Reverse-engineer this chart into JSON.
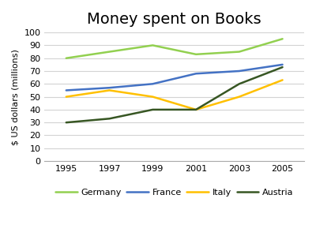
{
  "title": "Money spent on Books",
  "ylabel": "$ US dollars (millions)",
  "years": [
    1995,
    1997,
    1999,
    2001,
    2003,
    2005
  ],
  "series": {
    "Germany": [
      80,
      85,
      90,
      83,
      85,
      95
    ],
    "France": [
      55,
      57,
      60,
      68,
      70,
      75
    ],
    "Italy": [
      50,
      55,
      50,
      40,
      50,
      63
    ],
    "Austria": [
      30,
      33,
      40,
      40,
      60,
      73
    ]
  },
  "colors": {
    "Germany": "#92D050",
    "France": "#4472C4",
    "Italy": "#FFC000",
    "Austria": "#375623"
  },
  "ylim": [
    0,
    100
  ],
  "yticks": [
    0,
    10,
    20,
    30,
    40,
    50,
    60,
    70,
    80,
    90,
    100
  ],
  "background_color": "#ffffff",
  "grid_color": "#d3d3d3",
  "title_fontsize": 14,
  "label_fontsize": 8,
  "tick_fontsize": 8,
  "legend_fontsize": 8,
  "line_width": 1.8
}
